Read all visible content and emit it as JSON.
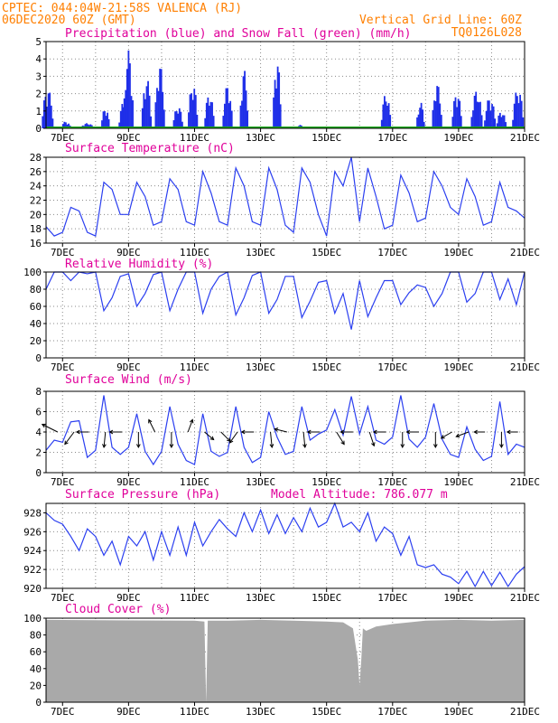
{
  "header": {
    "line1": "CPTEC:   044:04W-21:58S  VALENCA (RJ)",
    "line2": "06DEC2020 60Z (GMT)",
    "grid_note": "Vertical Grid Line: 60Z",
    "code": "TQ0126L028"
  },
  "colors": {
    "header": "#ff7f00",
    "title": "#e0009a",
    "precip": "#1f2fe8",
    "snow": "#18a818",
    "line": "#2b3ff0",
    "cloud": "#a9a9a9",
    "arrow": "#000000"
  },
  "x_axis": {
    "start_day": 6,
    "start_hour": 12,
    "end_day": 21,
    "end_hour": 0,
    "tick_labels": [
      "7DEC",
      "9DEC",
      "11DEC",
      "13DEC",
      "15DEC",
      "17DEC",
      "19DEC",
      "21DEC"
    ],
    "tick_days": [
      7,
      9,
      11,
      13,
      15,
      17,
      19,
      21
    ]
  },
  "chart_data": [
    {
      "type": "bar",
      "title": "Precipitation (blue) and Snow Fall (green) (mm/h)",
      "ylim": [
        0,
        5
      ],
      "yticks": [
        0,
        1,
        2,
        3,
        4,
        5
      ],
      "series": [
        {
          "name": "Precipitation",
          "color": "#1f2fe8",
          "note": "hourly bars, mm/h"
        },
        {
          "name": "Snow Fall",
          "color": "#18a818",
          "value": 0
        }
      ],
      "episodes": [
        {
          "day": 6.55,
          "peak": 2.3,
          "width": 0.35
        },
        {
          "day": 7.1,
          "peak": 0.4,
          "width": 0.3
        },
        {
          "day": 7.75,
          "peak": 0.3,
          "width": 0.4
        },
        {
          "day": 8.3,
          "peak": 1.2,
          "width": 0.25
        },
        {
          "day": 8.85,
          "peak": 1.5,
          "width": 0.3
        },
        {
          "day": 9.0,
          "peak": 4.5,
          "width": 0.3
        },
        {
          "day": 9.55,
          "peak": 2.9,
          "width": 0.3
        },
        {
          "day": 9.95,
          "peak": 3.7,
          "width": 0.3
        },
        {
          "day": 10.5,
          "peak": 1.3,
          "width": 0.3
        },
        {
          "day": 10.95,
          "peak": 2.6,
          "width": 0.3
        },
        {
          "day": 11.45,
          "peak": 2.0,
          "width": 0.3
        },
        {
          "day": 12.0,
          "peak": 2.5,
          "width": 0.3
        },
        {
          "day": 12.5,
          "peak": 3.4,
          "width": 0.25
        },
        {
          "day": 13.5,
          "peak": 4.0,
          "width": 0.25
        },
        {
          "day": 14.2,
          "peak": 0.2,
          "width": 0.2
        },
        {
          "day": 16.8,
          "peak": 2.0,
          "width": 0.3
        },
        {
          "day": 17.85,
          "peak": 1.5,
          "width": 0.25
        },
        {
          "day": 18.35,
          "peak": 2.6,
          "width": 0.3
        },
        {
          "day": 18.95,
          "peak": 2.1,
          "width": 0.3
        },
        {
          "day": 19.55,
          "peak": 2.2,
          "width": 0.35
        },
        {
          "day": 19.95,
          "peak": 1.8,
          "width": 0.35
        },
        {
          "day": 20.3,
          "peak": 1.0,
          "width": 0.3
        },
        {
          "day": 20.8,
          "peak": 2.3,
          "width": 0.35
        }
      ]
    },
    {
      "type": "line",
      "title": "Surface Temperature (nC)",
      "ylim": [
        16,
        28
      ],
      "yticks": [
        16,
        18,
        20,
        22,
        24,
        26,
        28
      ],
      "x": [
        6.5,
        6.75,
        7.0,
        7.25,
        7.5,
        7.75,
        8.0,
        8.25,
        8.5,
        8.75,
        9.0,
        9.25,
        9.5,
        9.75,
        10.0,
        10.25,
        10.5,
        10.75,
        11.0,
        11.25,
        11.5,
        11.75,
        12.0,
        12.25,
        12.5,
        12.75,
        13.0,
        13.25,
        13.5,
        13.75,
        14.0,
        14.25,
        14.5,
        14.75,
        15.0,
        15.25,
        15.5,
        15.75,
        16.0,
        16.25,
        16.5,
        16.75,
        17.0,
        17.25,
        17.5,
        17.75,
        18.0,
        18.25,
        18.5,
        18.75,
        19.0,
        19.25,
        19.5,
        19.75,
        20.0,
        20.25,
        20.5,
        20.75,
        21.0
      ],
      "values": [
        18.3,
        17.0,
        17.5,
        21.0,
        20.5,
        17.5,
        17.0,
        24.5,
        23.5,
        20.0,
        20.0,
        24.5,
        22.5,
        18.5,
        19.0,
        25.0,
        23.5,
        19.0,
        18.5,
        26.0,
        23.0,
        19.0,
        18.5,
        26.5,
        24.0,
        19.0,
        18.5,
        26.5,
        23.5,
        18.5,
        17.5,
        26.5,
        24.5,
        20.0,
        17.0,
        26.0,
        24.0,
        28.0,
        19.0,
        26.5,
        22.5,
        18.0,
        18.5,
        25.5,
        23.0,
        19.0,
        19.5,
        26.0,
        24.0,
        21.0,
        20.0,
        25.0,
        22.5,
        18.5,
        19.0,
        24.5,
        21.0,
        20.5,
        19.5
      ]
    },
    {
      "type": "line",
      "title": "Relative Humidity (%)",
      "ylim": [
        0,
        100
      ],
      "yticks": [
        0,
        20,
        40,
        60,
        80,
        100
      ],
      "x": [
        6.5,
        6.75,
        7.0,
        7.25,
        7.5,
        7.75,
        8.0,
        8.25,
        8.5,
        8.75,
        9.0,
        9.25,
        9.5,
        9.75,
        10.0,
        10.25,
        10.5,
        10.75,
        11.0,
        11.25,
        11.5,
        11.75,
        12.0,
        12.25,
        12.5,
        12.75,
        13.0,
        13.25,
        13.5,
        13.75,
        14.0,
        14.25,
        14.5,
        14.75,
        15.0,
        15.25,
        15.5,
        15.75,
        16.0,
        16.25,
        16.5,
        16.75,
        17.0,
        17.25,
        17.5,
        17.75,
        18.0,
        18.25,
        18.5,
        18.75,
        19.0,
        19.25,
        19.5,
        19.75,
        20.0,
        20.25,
        20.5,
        20.75,
        21.0
      ],
      "values": [
        80,
        100,
        100,
        90,
        100,
        98,
        100,
        55,
        70,
        95,
        98,
        60,
        75,
        97,
        100,
        55,
        80,
        100,
        100,
        52,
        80,
        95,
        100,
        50,
        70,
        96,
        100,
        52,
        68,
        95,
        95,
        47,
        66,
        88,
        90,
        52,
        75,
        33,
        90,
        48,
        70,
        90,
        90,
        62,
        76,
        85,
        82,
        60,
        75,
        100,
        100,
        65,
        75,
        100,
        100,
        68,
        92,
        62,
        100
      ]
    },
    {
      "type": "line",
      "title": "Surface Wind (m/s)",
      "ylim": [
        0,
        8
      ],
      "yticks": [
        0,
        2,
        4,
        6,
        8
      ],
      "x": [
        6.5,
        6.75,
        7.0,
        7.25,
        7.5,
        7.75,
        8.0,
        8.25,
        8.5,
        8.75,
        9.0,
        9.25,
        9.5,
        9.75,
        10.0,
        10.25,
        10.5,
        10.75,
        11.0,
        11.25,
        11.5,
        11.75,
        12.0,
        12.25,
        12.5,
        12.75,
        13.0,
        13.25,
        13.5,
        13.75,
        14.0,
        14.25,
        14.5,
        14.75,
        15.0,
        15.25,
        15.5,
        15.75,
        16.0,
        16.25,
        16.5,
        16.75,
        17.0,
        17.25,
        17.5,
        17.75,
        18.0,
        18.25,
        18.5,
        18.75,
        19.0,
        19.25,
        19.5,
        19.75,
        20.0,
        20.25,
        20.5,
        20.75,
        21.0
      ],
      "values": [
        2.2,
        3.2,
        3.0,
        5.0,
        5.1,
        1.5,
        2.2,
        7.6,
        2.5,
        1.8,
        2.5,
        5.8,
        2.1,
        0.8,
        2.1,
        6.5,
        2.8,
        1.2,
        0.8,
        5.8,
        2.1,
        1.6,
        2.0,
        6.5,
        2.5,
        1.0,
        1.5,
        6.0,
        3.5,
        1.8,
        2.1,
        6.5,
        3.2,
        3.8,
        4.2,
        6.2,
        3.7,
        7.5,
        3.8,
        6.5,
        3.2,
        2.8,
        3.5,
        7.6,
        3.3,
        2.5,
        3.5,
        6.8,
        3.3,
        1.8,
        1.5,
        4.5,
        2.3,
        1.2,
        1.6,
        7.0,
        1.8,
        2.8,
        2.5
      ],
      "arrows": [
        {
          "day": 6.85,
          "dx": -1,
          "dy": -0.5
        },
        {
          "day": 7.35,
          "dx": -0.6,
          "dy": 0.8
        },
        {
          "day": 7.8,
          "dx": -0.8,
          "dy": 0
        },
        {
          "day": 8.3,
          "dx": -0.1,
          "dy": 1
        },
        {
          "day": 8.8,
          "dx": -0.8,
          "dy": 0
        },
        {
          "day": 9.3,
          "dx": 0,
          "dy": 1
        },
        {
          "day": 9.8,
          "dx": -0.4,
          "dy": -0.8
        },
        {
          "day": 10.3,
          "dx": 0,
          "dy": 1
        },
        {
          "day": 10.8,
          "dx": 0.3,
          "dy": -0.8
        },
        {
          "day": 11.3,
          "dx": 0.6,
          "dy": 0.5
        },
        {
          "day": 11.8,
          "dx": 0.6,
          "dy": 0.6
        },
        {
          "day": 12.3,
          "dx": -0.5,
          "dy": 0.7
        },
        {
          "day": 12.8,
          "dx": -0.8,
          "dy": 0
        },
        {
          "day": 13.3,
          "dx": 0.1,
          "dy": 1
        },
        {
          "day": 13.8,
          "dx": -0.8,
          "dy": -0.2
        },
        {
          "day": 14.3,
          "dx": 0.1,
          "dy": 1
        },
        {
          "day": 14.8,
          "dx": -0.8,
          "dy": 0
        },
        {
          "day": 15.3,
          "dx": 0.5,
          "dy": 0.8
        },
        {
          "day": 15.8,
          "dx": -0.8,
          "dy": 0
        },
        {
          "day": 16.3,
          "dx": 0.3,
          "dy": 0.9
        },
        {
          "day": 16.8,
          "dx": -0.8,
          "dy": 0
        },
        {
          "day": 17.3,
          "dx": 0,
          "dy": 1
        },
        {
          "day": 17.8,
          "dx": -0.8,
          "dy": 0
        },
        {
          "day": 18.3,
          "dx": 0,
          "dy": 1
        },
        {
          "day": 18.8,
          "dx": -0.7,
          "dy": 0.4
        },
        {
          "day": 19.3,
          "dx": -0.8,
          "dy": 0.3
        },
        {
          "day": 19.8,
          "dx": -0.7,
          "dy": 0
        },
        {
          "day": 20.3,
          "dx": 0,
          "dy": 1
        },
        {
          "day": 20.8,
          "dx": -0.7,
          "dy": 0
        }
      ]
    },
    {
      "type": "line",
      "title": "Surface Pressure (hPa)",
      "subtitle": "Model Altitude: 786.077 m",
      "ylim": [
        920,
        929
      ],
      "yticks": [
        920,
        922,
        924,
        926,
        928
      ],
      "x": [
        6.5,
        6.75,
        7.0,
        7.25,
        7.5,
        7.75,
        8.0,
        8.25,
        8.5,
        8.75,
        9.0,
        9.25,
        9.5,
        9.75,
        10.0,
        10.25,
        10.5,
        10.75,
        11.0,
        11.25,
        11.5,
        11.75,
        12.0,
        12.25,
        12.5,
        12.75,
        13.0,
        13.25,
        13.5,
        13.75,
        14.0,
        14.25,
        14.5,
        14.75,
        15.0,
        15.25,
        15.5,
        15.75,
        16.0,
        16.25,
        16.5,
        16.75,
        17.0,
        17.25,
        17.5,
        17.75,
        18.0,
        18.25,
        18.5,
        18.75,
        19.0,
        19.25,
        19.5,
        19.75,
        20.0,
        20.25,
        20.5,
        20.75,
        21.0
      ],
      "values": [
        928.0,
        927.2,
        926.8,
        925.5,
        924.0,
        926.3,
        925.5,
        923.5,
        925.0,
        922.5,
        925.5,
        924.5,
        926.0,
        923.0,
        926.0,
        923.5,
        926.5,
        923.5,
        927.0,
        924.5,
        926.0,
        927.3,
        926.3,
        925.5,
        928.0,
        926.0,
        928.3,
        925.8,
        927.8,
        925.8,
        927.5,
        926.0,
        928.5,
        926.5,
        927.0,
        929.0,
        926.5,
        927.0,
        926.0,
        928.0,
        925.0,
        926.5,
        925.8,
        923.5,
        925.5,
        922.5,
        922.2,
        922.5,
        921.5,
        921.2,
        920.5,
        921.8,
        920.2,
        921.8,
        920.3,
        921.7,
        920.2,
        921.5,
        922.3
      ]
    },
    {
      "type": "area",
      "title": "Cloud Cover (%)",
      "ylim": [
        0,
        100
      ],
      "yticks": [
        0,
        20,
        40,
        60,
        80,
        100
      ],
      "x": [
        6.5,
        11.0,
        11.3,
        11.35,
        11.4,
        12.0,
        13.0,
        14.0,
        15.0,
        15.5,
        15.8,
        15.95,
        16.0,
        16.05,
        16.1,
        16.2,
        16.5,
        17.0,
        17.5,
        18.0,
        19.0,
        20.0,
        21.0
      ],
      "values": [
        98,
        97,
        96,
        0,
        97,
        97,
        98,
        97,
        96,
        95,
        88,
        50,
        20,
        50,
        88,
        85,
        90,
        93,
        95,
        97,
        98,
        97,
        98
      ]
    }
  ]
}
